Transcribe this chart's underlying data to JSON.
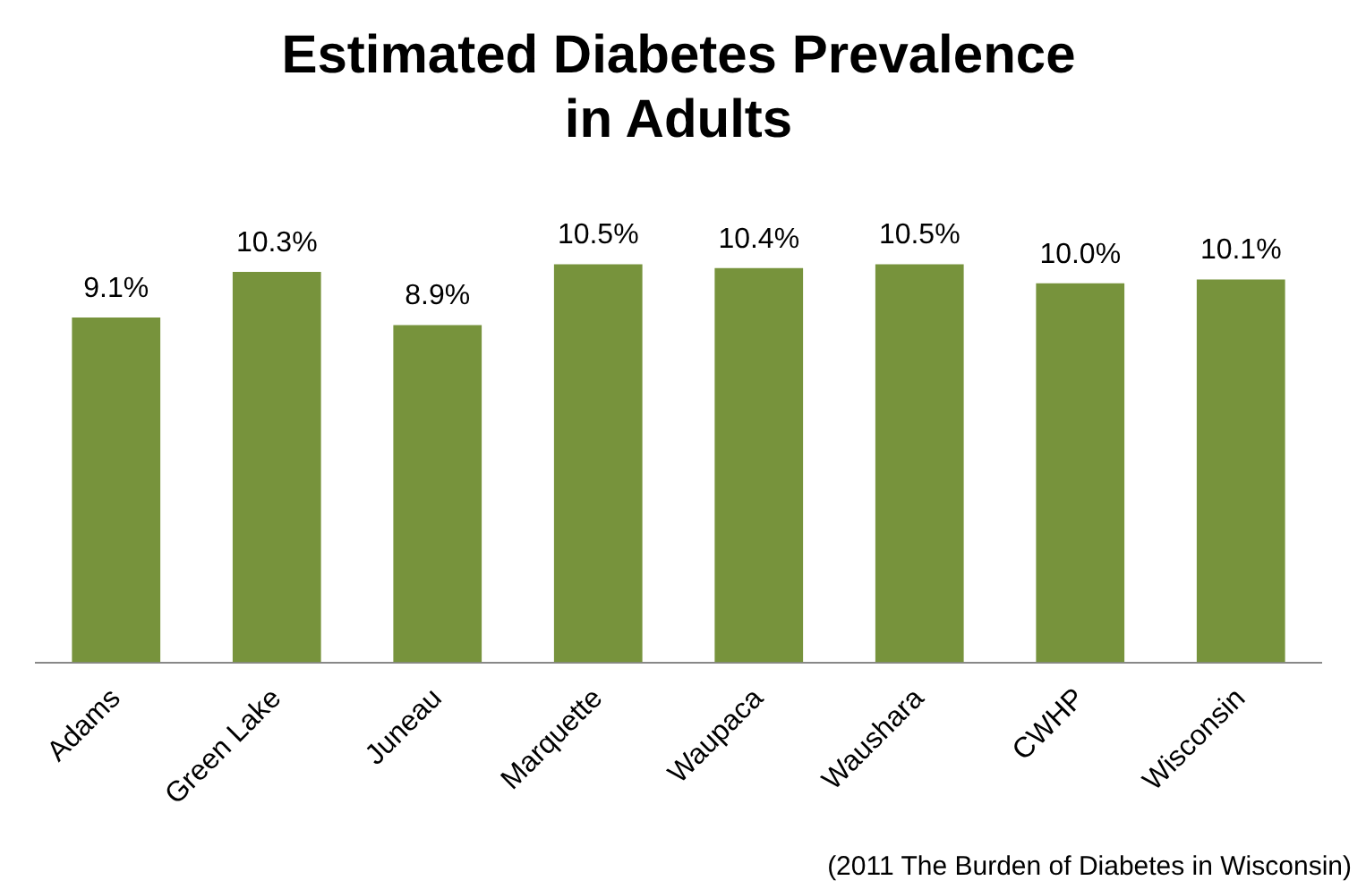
{
  "chart_data": {
    "type": "bar",
    "title": "Estimated Diabetes Prevalence\nin Adults",
    "categories": [
      "Adams",
      "Green Lake",
      "Juneau",
      "Marquette",
      "Waupaca",
      "Waushara",
      "CWHP",
      "Wisconsin"
    ],
    "values": [
      9.1,
      10.3,
      8.9,
      10.5,
      10.4,
      10.5,
      10.0,
      10.1
    ],
    "value_labels": [
      "9.1%",
      "10.3%",
      "8.9%",
      "10.5%",
      "10.4%",
      "10.5%",
      "10.0%",
      "10.1%"
    ],
    "color": "#77933c",
    "tick_labels": "x",
    "grid": false,
    "legend": false,
    "annotations": [
      "(2011 The Burden of Diabetes in Wisconsin)"
    ]
  }
}
